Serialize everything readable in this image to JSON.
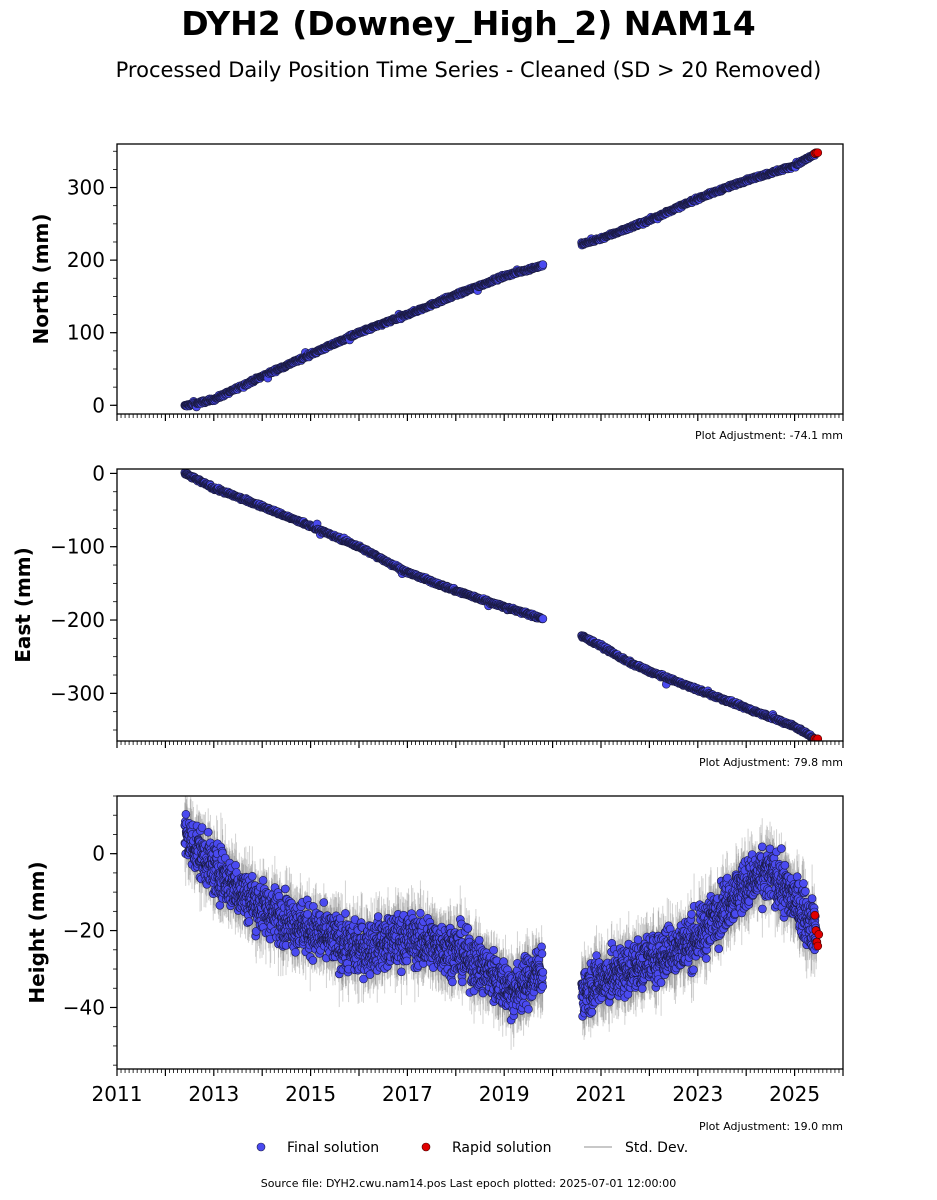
{
  "title": "DYH2 (Downey_High_2) NAM14",
  "subtitle": "Processed Daily Position Time Series - Cleaned (SD > 20 Removed)",
  "source_note": "Source file: DYH2.cwu.nam14.pos  Last epoch plotted: 2025-07-01 12:00:00",
  "colors": {
    "final": "#4a4af0",
    "final_edge": "#1a1a40",
    "rapid": "#e00000",
    "std": "#808080"
  },
  "legend": {
    "final": "Final solution",
    "rapid": "Rapid solution",
    "std": "Std. Dev."
  },
  "chart_data": [
    {
      "type": "scatter",
      "ylabel": "North (mm)",
      "adjustment": "Plot Adjustment: -74.1 mm",
      "xlim": [
        2011,
        2026
      ],
      "ylim": [
        -12,
        360
      ],
      "yticks": [
        0,
        100,
        200,
        300
      ],
      "ytick_labels": [
        "0",
        "100",
        "200",
        "300"
      ],
      "segments": [
        {
          "x": [
            2012.4,
            2013.0,
            2014.0,
            2015.0,
            2016.0,
            2017.0,
            2018.0,
            2019.0,
            2019.8
          ],
          "y": [
            -1,
            8,
            40,
            70,
            100,
            125,
            152,
            178,
            193
          ]
        },
        {
          "x": [
            2020.6,
            2021.0,
            2022.0,
            2023.0,
            2024.0,
            2025.0,
            2025.45
          ],
          "y": [
            222,
            230,
            255,
            285,
            310,
            330,
            347
          ]
        }
      ],
      "rapid": {
        "x": [
          2025.42,
          2025.45,
          2025.48
        ],
        "y": [
          347,
          348,
          348
        ]
      }
    },
    {
      "type": "scatter",
      "ylabel": "East (mm)",
      "adjustment": "Plot Adjustment: 79.8 mm",
      "xlim": [
        2011,
        2026
      ],
      "ylim": [
        -365,
        6
      ],
      "yticks": [
        0,
        -100,
        -200,
        -300
      ],
      "ytick_labels": [
        "0",
        "−100",
        "−200",
        "−300"
      ],
      "segments": [
        {
          "x": [
            2012.4,
            2013.0,
            2014.0,
            2015.0,
            2016.0,
            2017.0,
            2018.0,
            2019.0,
            2019.8
          ],
          "y": [
            0,
            -20,
            -45,
            -72,
            -100,
            -135,
            -160,
            -182,
            -198
          ]
        },
        {
          "x": [
            2020.6,
            2021.0,
            2021.5,
            2022.0,
            2023.0,
            2024.0,
            2025.0,
            2025.45
          ],
          "y": [
            -222,
            -235,
            -255,
            -270,
            -295,
            -320,
            -345,
            -363
          ]
        }
      ],
      "rapid": {
        "x": [
          2025.42,
          2025.45,
          2025.48
        ],
        "y": [
          -362,
          -363,
          -362
        ]
      }
    },
    {
      "type": "scatter",
      "ylabel": "Height (mm)",
      "adjustment": "Plot Adjustment: 19.0 mm",
      "xlim": [
        2011,
        2026
      ],
      "ylim": [
        -56,
        15
      ],
      "yticks": [
        0,
        -20,
        -40
      ],
      "ytick_labels": [
        "0",
        "−20",
        "−40"
      ],
      "xticks": [
        2011,
        2013,
        2015,
        2017,
        2019,
        2021,
        2023,
        2025
      ],
      "xtick_labels": [
        "2011",
        "2013",
        "2015",
        "2017",
        "2019",
        "2021",
        "2023",
        "2025"
      ],
      "segments": [
        {
          "x": [
            2012.4,
            2013.0,
            2014.0,
            2015.0,
            2016.0,
            2017.0,
            2018.0,
            2018.8,
            2019.2,
            2019.8
          ],
          "y": [
            5,
            -4,
            -14,
            -20,
            -25,
            -22,
            -25,
            -32,
            -36,
            -30
          ]
        },
        {
          "x": [
            2020.6,
            2021.0,
            2022.0,
            2023.0,
            2023.5,
            2024.0,
            2024.5,
            2025.0,
            2025.45
          ],
          "y": [
            -36,
            -33,
            -28,
            -22,
            -14,
            -8,
            -5,
            -12,
            -20
          ]
        }
      ],
      "rapid": {
        "x": [
          2025.42,
          2025.44,
          2025.46,
          2025.48,
          2025.5
        ],
        "y": [
          -16,
          -20,
          -23,
          -24,
          -21
        ]
      }
    }
  ]
}
